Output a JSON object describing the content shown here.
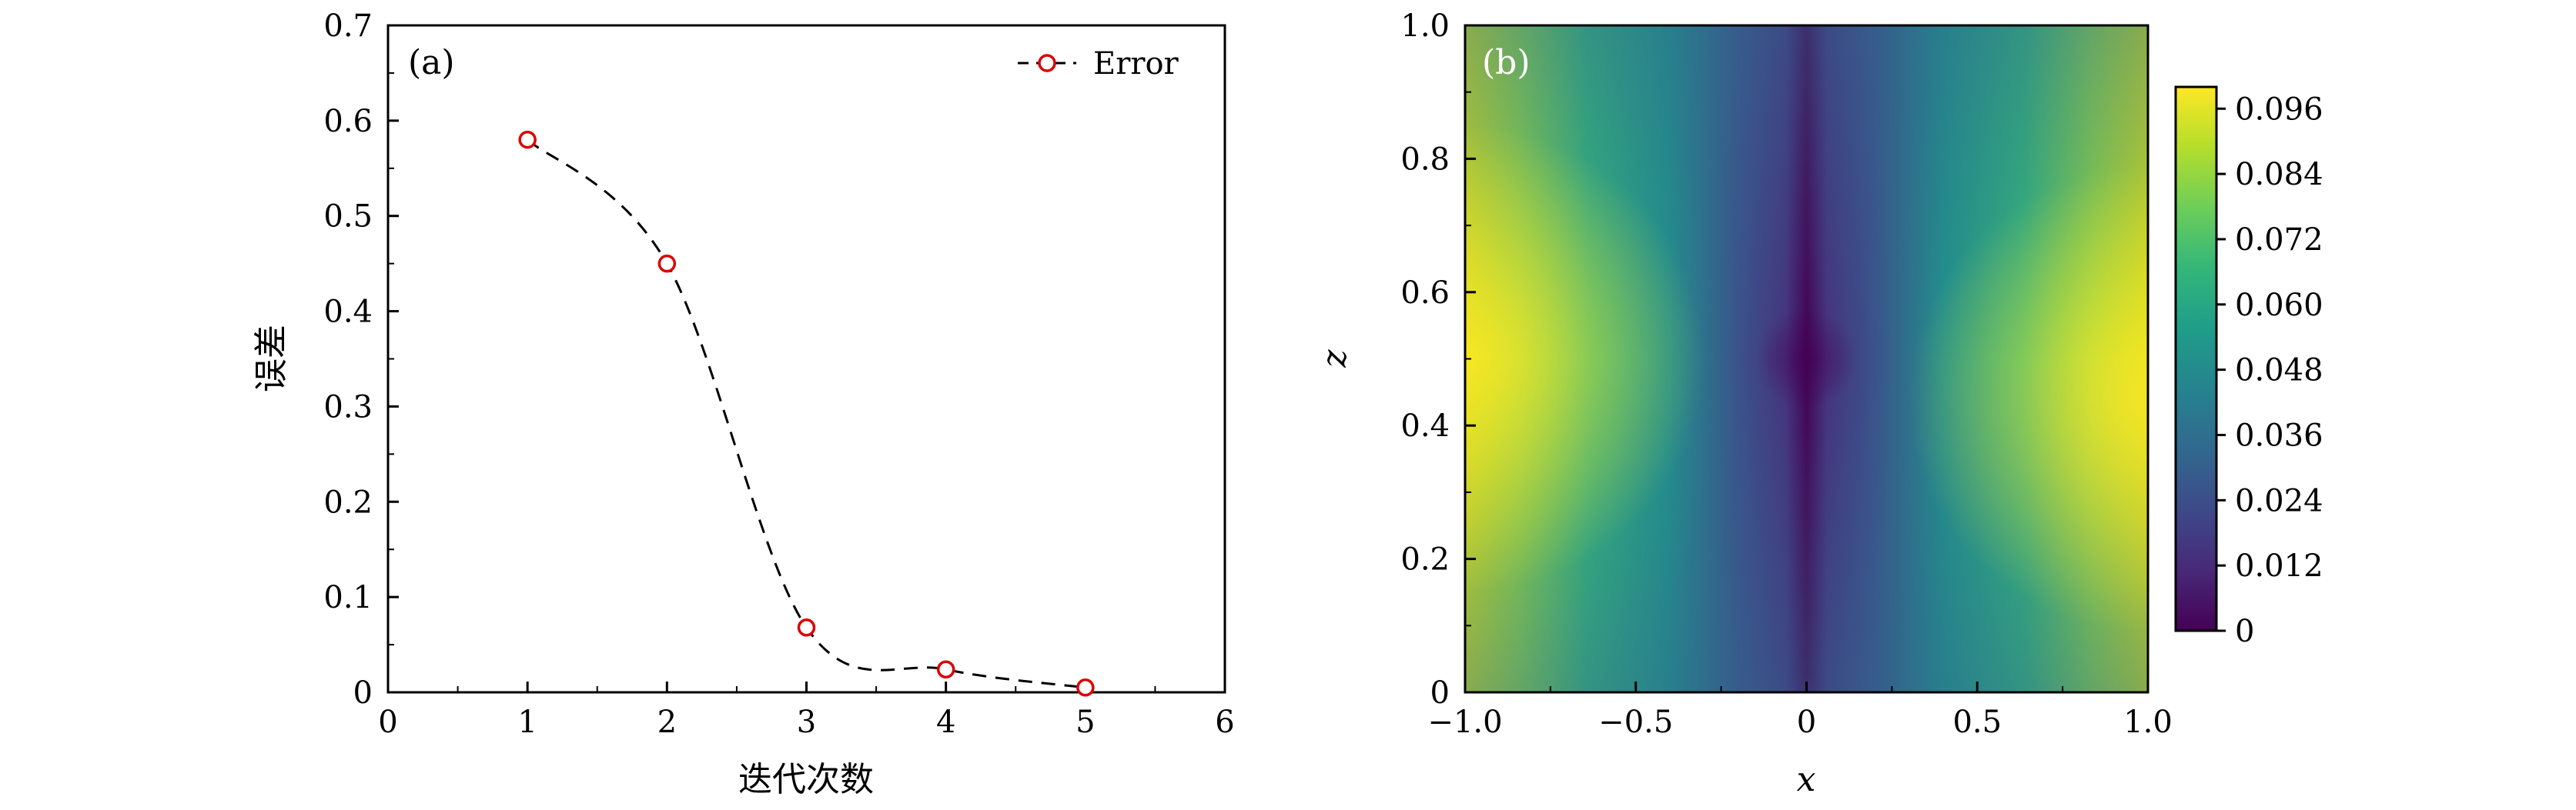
{
  "chart_data": [
    {
      "type": "line",
      "panel_label": "(a)",
      "x": [
        1,
        2,
        3,
        4,
        5
      ],
      "series": [
        {
          "name": "Error",
          "values": [
            0.58,
            0.45,
            0.068,
            0.024,
            0.005
          ]
        }
      ],
      "xlabel": "迭代次数",
      "ylabel": "误差",
      "xlim": [
        0,
        6
      ],
      "ylim": [
        0,
        0.7
      ],
      "xticks": [
        "0",
        "1",
        "2",
        "3",
        "4",
        "5",
        "6"
      ],
      "yticks": [
        "0",
        "0.1",
        "0.2",
        "0.3",
        "0.4",
        "0.5",
        "0.6",
        "0.7"
      ],
      "line_style": "dashed",
      "line_color": "#000000",
      "marker": "open-circle",
      "marker_color": "#dd0000",
      "legend_position": "top-right",
      "grid": false
    },
    {
      "type": "heatmap",
      "panel_label": "(b)",
      "xlabel": "x",
      "ylabel": "z",
      "xlim": [
        -1.0,
        1.0
      ],
      "ylim": [
        0,
        1.0
      ],
      "xticks": [
        "−1.0",
        "−0.5",
        "0",
        "0.5",
        "1.0"
      ],
      "yticks": [
        "0",
        "0.2",
        "0.4",
        "0.6",
        "0.8",
        "1.0"
      ],
      "colormap": "viridis",
      "colorbar_range": [
        0,
        0.1
      ],
      "colorbar_ticks": [
        "0",
        "0.012",
        "0.024",
        "0.036",
        "0.048",
        "0.060",
        "0.072",
        "0.084",
        "0.096"
      ],
      "field_description": "minimum near x=0, maximum near x=±1 at z≈0.5",
      "colors": [
        "#440154",
        "#482878",
        "#3e4989",
        "#31688e",
        "#26828e",
        "#1f9e89",
        "#35b779",
        "#6ece58",
        "#b5de2b",
        "#fde725"
      ]
    }
  ]
}
